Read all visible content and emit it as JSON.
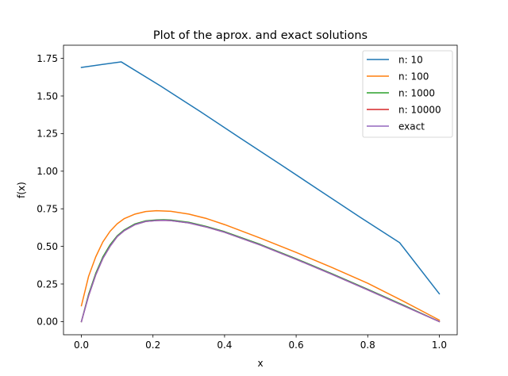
{
  "chart_data": {
    "type": "line",
    "title": "Plot of the aprox. and exact solutions",
    "xlabel": "x",
    "ylabel": "f(x)",
    "xlim": [
      -0.05,
      1.05
    ],
    "ylim": [
      -0.0875,
      1.8375
    ],
    "xticks": [
      "0.0",
      "0.2",
      "0.4",
      "0.6",
      "0.8",
      "1.0"
    ],
    "yticks": [
      "0.00",
      "0.25",
      "0.50",
      "0.75",
      "1.00",
      "1.25",
      "1.50",
      "1.75"
    ],
    "grid": false,
    "legend_position": "top-right",
    "series": [
      {
        "name": "n: 10",
        "color": "#1f77b4",
        "x": [
          0.0,
          0.111,
          0.222,
          0.333,
          0.444,
          0.556,
          0.667,
          0.778,
          0.889,
          1.0
        ],
        "y": [
          1.69,
          1.727,
          1.565,
          1.395,
          1.22,
          1.045,
          0.87,
          0.695,
          0.525,
          0.185
        ]
      },
      {
        "name": "n: 100",
        "color": "#ff7f0e",
        "x": [
          0.0,
          0.02,
          0.04,
          0.06,
          0.08,
          0.1,
          0.12,
          0.15,
          0.18,
          0.21,
          0.25,
          0.3,
          0.35,
          0.4,
          0.5,
          0.6,
          0.7,
          0.8,
          0.9,
          1.0
        ],
        "y": [
          0.105,
          0.3,
          0.43,
          0.53,
          0.6,
          0.65,
          0.685,
          0.715,
          0.732,
          0.737,
          0.733,
          0.715,
          0.685,
          0.645,
          0.555,
          0.46,
          0.36,
          0.255,
          0.135,
          0.01
        ]
      },
      {
        "name": "n: 1000",
        "color": "#2ca02c",
        "x": [
          0.0,
          0.01,
          0.02,
          0.04,
          0.06,
          0.08,
          0.1,
          0.12,
          0.15,
          0.18,
          0.21,
          0.23,
          0.25,
          0.3,
          0.35,
          0.4,
          0.5,
          0.6,
          0.7,
          0.8,
          0.9,
          1.0
        ],
        "y": [
          0.0,
          0.09,
          0.18,
          0.32,
          0.43,
          0.51,
          0.57,
          0.61,
          0.65,
          0.67,
          0.676,
          0.677,
          0.675,
          0.66,
          0.632,
          0.598,
          0.513,
          0.418,
          0.318,
          0.215,
          0.109,
          0.0
        ]
      },
      {
        "name": "n: 10000",
        "color": "#d62728",
        "x": [
          0.0,
          0.01,
          0.02,
          0.04,
          0.06,
          0.08,
          0.1,
          0.12,
          0.15,
          0.18,
          0.21,
          0.23,
          0.25,
          0.3,
          0.35,
          0.4,
          0.5,
          0.6,
          0.7,
          0.8,
          0.9,
          1.0
        ],
        "y": [
          0.0,
          0.085,
          0.17,
          0.31,
          0.42,
          0.5,
          0.565,
          0.605,
          0.645,
          0.666,
          0.672,
          0.673,
          0.671,
          0.656,
          0.628,
          0.594,
          0.509,
          0.414,
          0.314,
          0.211,
          0.105,
          0.0
        ]
      },
      {
        "name": "exact",
        "color": "#9467bd",
        "x": [
          0.0,
          0.01,
          0.02,
          0.04,
          0.06,
          0.08,
          0.1,
          0.12,
          0.15,
          0.18,
          0.21,
          0.23,
          0.25,
          0.3,
          0.35,
          0.4,
          0.5,
          0.6,
          0.7,
          0.8,
          0.9,
          1.0
        ],
        "y": [
          0.0,
          0.085,
          0.17,
          0.31,
          0.42,
          0.5,
          0.565,
          0.605,
          0.645,
          0.666,
          0.672,
          0.673,
          0.671,
          0.656,
          0.628,
          0.594,
          0.509,
          0.414,
          0.314,
          0.211,
          0.105,
          0.0
        ]
      }
    ]
  }
}
